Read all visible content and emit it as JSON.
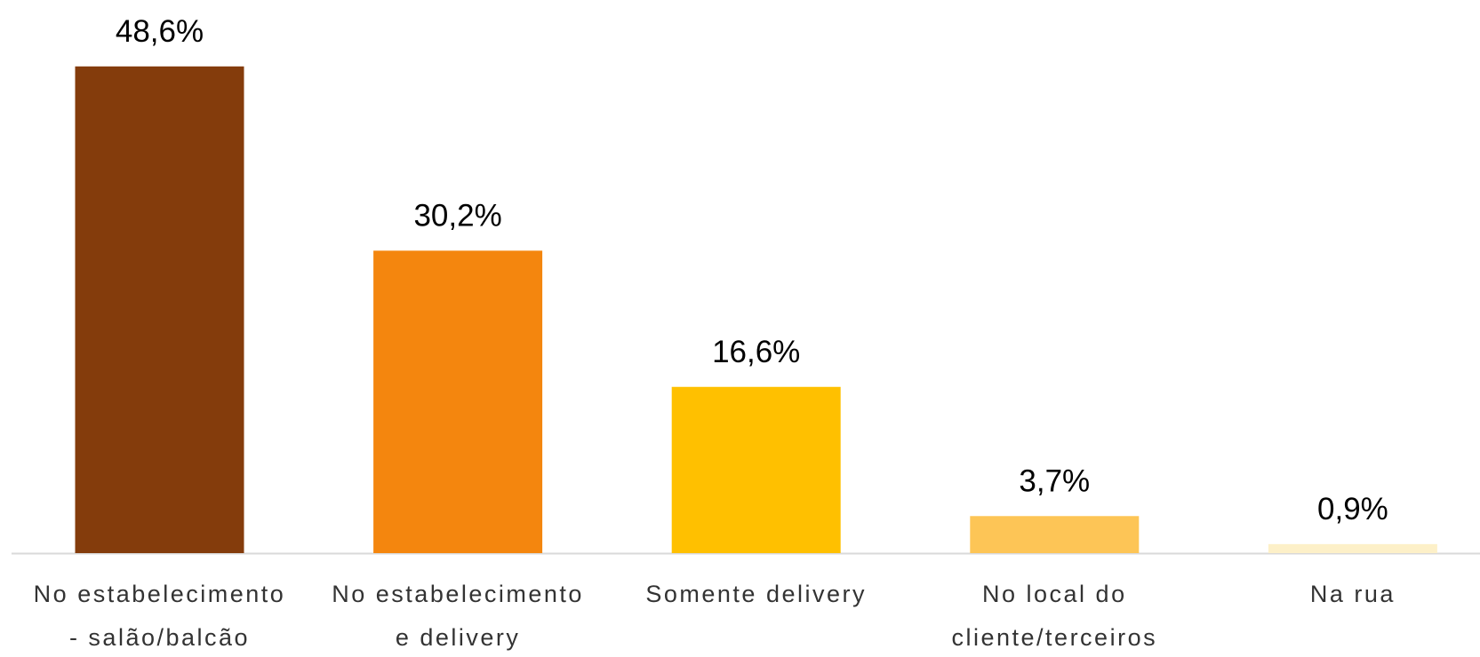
{
  "chart_data": {
    "type": "bar",
    "categories": [
      "No estabelecimento - salão/balcão",
      "No estabelecimento e delivery",
      "Somente delivery",
      "No local do cliente/terceiros",
      "Na rua"
    ],
    "values": [
      48.6,
      30.2,
      16.6,
      3.7,
      0.9
    ],
    "value_labels": [
      "48,6%",
      "30,2%",
      "16,6%",
      "3,7%",
      "0,9%"
    ],
    "colors": [
      "#843c0c",
      "#f4860e",
      "#ffc000",
      "#fdc556",
      "#fdf0c8"
    ]
  }
}
